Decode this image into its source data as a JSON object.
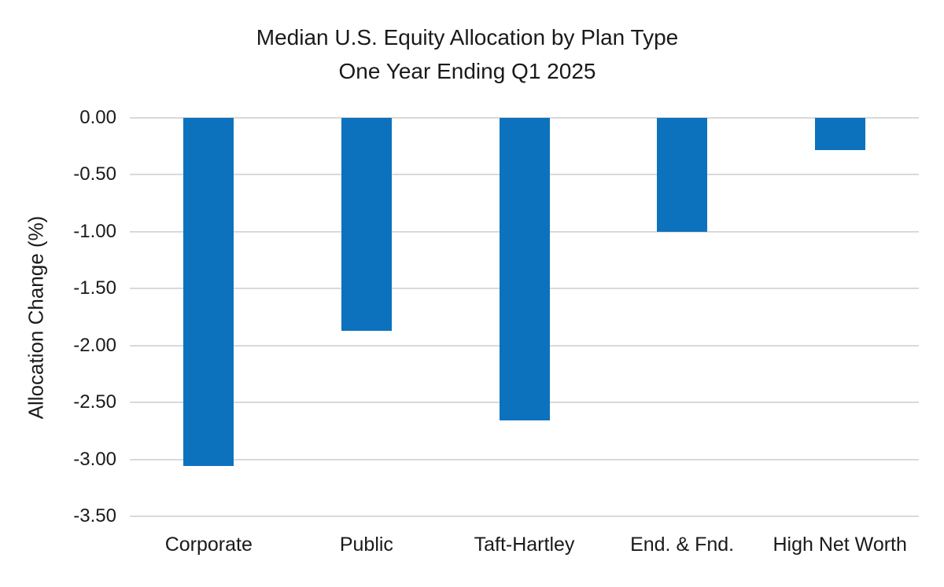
{
  "chart_data": {
    "type": "bar",
    "title": "Median U.S. Equity Allocation by Plan Type",
    "subtitle": "One Year Ending Q1 2025",
    "xlabel": "",
    "ylabel": "Allocation Change (%)",
    "categories": [
      "Corporate",
      "Public",
      "Taft-Hartley",
      "End. & Fnd.",
      "High Net Worth"
    ],
    "values": [
      -3.06,
      -1.87,
      -2.66,
      -1.0,
      -0.28
    ],
    "ylim": [
      -3.5,
      0
    ],
    "yticks": [
      0,
      -0.5,
      -1,
      -1.5,
      -2,
      -2.5,
      -3,
      -3.5
    ],
    "ytick_labels": [
      "0.00",
      "-0.50",
      "-1.00",
      "-1.50",
      "-2.00",
      "-2.50",
      "-3.00",
      "-3.50"
    ],
    "grid": true,
    "legend": false,
    "bar_color": "#0D72BE",
    "gridline_color": "#D9D9D9",
    "text_color": "#1A1A1A",
    "background_color": "#FFFFFF"
  }
}
